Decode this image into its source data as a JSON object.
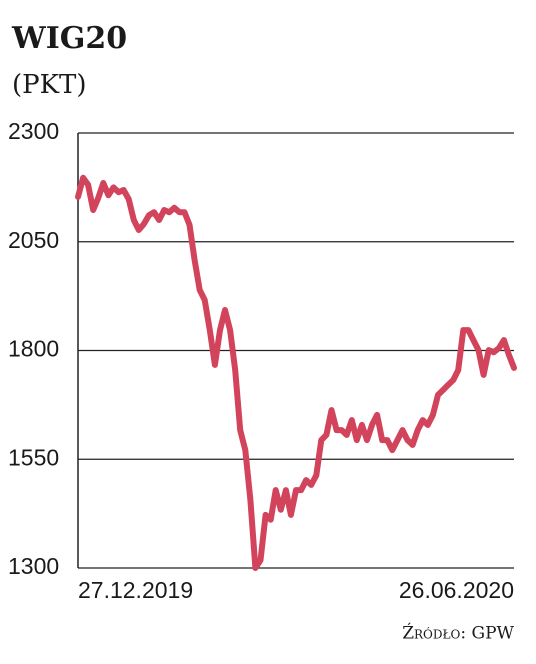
{
  "chart_data": {
    "type": "line",
    "title": "WIG20",
    "subtitle": "(PKT)",
    "source": "Źródło: GPW",
    "categories": [
      "27.12.2019",
      null,
      null,
      null,
      null,
      null,
      null,
      null,
      null,
      null,
      null,
      null,
      null,
      null,
      null,
      null,
      null,
      null,
      null,
      null,
      null,
      null,
      null,
      null,
      null,
      null,
      null,
      null,
      null,
      null,
      null,
      null,
      null,
      null,
      null,
      null,
      null,
      null,
      null,
      null,
      null,
      null,
      null,
      null,
      null,
      null,
      null,
      null,
      null,
      null,
      null,
      null,
      null,
      null,
      null,
      null,
      null,
      null,
      null,
      null,
      null,
      null,
      null,
      null,
      null,
      null,
      null,
      null,
      null,
      null,
      null,
      null,
      null,
      null,
      null,
      null,
      null,
      null,
      null,
      null,
      null,
      null,
      null,
      null,
      null,
      null,
      "26.06.2020"
    ],
    "series": [
      {
        "name": "WIG20",
        "color": "#d2445c",
        "values": [
          2153,
          2197,
          2181,
          2123,
          2151,
          2185,
          2157,
          2175,
          2164,
          2169,
          2148,
          2100,
          2077,
          2091,
          2111,
          2118,
          2100,
          2123,
          2118,
          2128,
          2118,
          2118,
          2089,
          2008,
          1939,
          1916,
          1847,
          1767,
          1847,
          1893,
          1847,
          1755,
          1617,
          1571,
          1456,
          1300,
          1318,
          1422,
          1411,
          1479,
          1434,
          1479,
          1422,
          1479,
          1479,
          1502,
          1491,
          1513,
          1594,
          1606,
          1663,
          1617,
          1617,
          1606,
          1640,
          1594,
          1629,
          1594,
          1629,
          1652,
          1594,
          1594,
          1571,
          1594,
          1617,
          1594,
          1583,
          1617,
          1640,
          1629,
          1652,
          1698,
          1709,
          1721,
          1732,
          1755,
          1847,
          1847,
          1824,
          1801,
          1744,
          1801,
          1796,
          1805,
          1824,
          1790,
          1760
        ]
      }
    ],
    "ylim": [
      1300,
      2300
    ],
    "yticks": [
      1300,
      1550,
      1800,
      2050,
      2300
    ],
    "grid": true
  }
}
